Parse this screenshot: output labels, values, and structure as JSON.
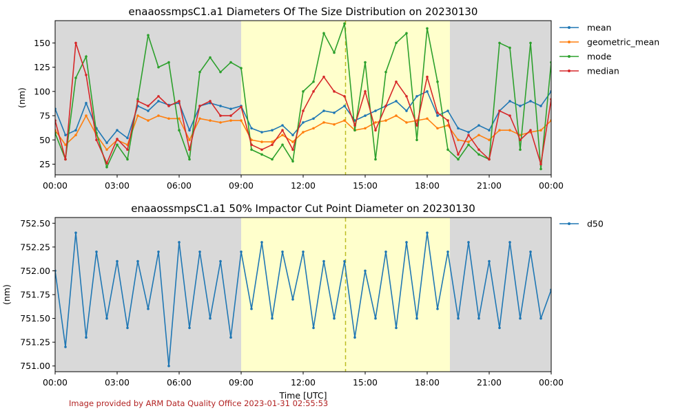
{
  "footer": "Image provided by ARM Data Quality Office 2023-01-31 02:55:53",
  "colors": {
    "night": "#d9d9d9",
    "day": "#ffffcc",
    "marker_line": "#bcbd22",
    "mean": "#1f77b4",
    "geometric_mean": "#ff7f0e",
    "mode": "#2ca02c",
    "median": "#d62728",
    "d50": "#1f77b4"
  },
  "shading": {
    "night_segments": [
      [
        0,
        9.0
      ],
      [
        19.1,
        24
      ]
    ],
    "day_segment": [
      9.0,
      19.1
    ],
    "marker_hour": 14.05
  },
  "chart_data": [
    {
      "type": "line",
      "title": "enaaossmpsC1.a1 Diameters Of The Size Distribution on 20230130",
      "ylabel": "(nm)",
      "xlabel": "",
      "xlim": [
        0,
        24
      ],
      "ylim": [
        14,
        173
      ],
      "xticks": [
        {
          "value": 0,
          "label": "00:00"
        },
        {
          "value": 3,
          "label": "03:00"
        },
        {
          "value": 6,
          "label": "06:00"
        },
        {
          "value": 9,
          "label": "09:00"
        },
        {
          "value": 12,
          "label": "12:00"
        },
        {
          "value": 15,
          "label": "15:00"
        },
        {
          "value": 18,
          "label": "18:00"
        },
        {
          "value": 21,
          "label": "21:00"
        },
        {
          "value": 24,
          "label": "00:00"
        }
      ],
      "yticks": [
        {
          "value": 25,
          "label": "25"
        },
        {
          "value": 50,
          "label": "50"
        },
        {
          "value": 75,
          "label": "75"
        },
        {
          "value": 100,
          "label": "100"
        },
        {
          "value": 125,
          "label": "125"
        },
        {
          "value": 150,
          "label": "150"
        }
      ],
      "legend_position": "outside-right",
      "x": [
        0.0,
        0.5,
        1.0,
        1.5,
        2.0,
        2.5,
        3.0,
        3.5,
        4.0,
        4.5,
        5.0,
        5.5,
        6.0,
        6.5,
        7.0,
        7.5,
        8.0,
        8.5,
        9.0,
        9.5,
        10.0,
        10.5,
        11.0,
        11.5,
        12.0,
        12.5,
        13.0,
        13.5,
        14.0,
        14.5,
        15.0,
        15.5,
        16.0,
        16.5,
        17.0,
        17.5,
        18.0,
        18.5,
        19.0,
        19.5,
        20.0,
        20.5,
        21.0,
        21.5,
        22.0,
        22.5,
        23.0,
        23.5,
        24.0
      ],
      "series": [
        {
          "name": "mean",
          "values": [
            82,
            55,
            60,
            88,
            62,
            47,
            60,
            52,
            85,
            80,
            90,
            86,
            88,
            60,
            85,
            88,
            85,
            82,
            85,
            62,
            58,
            60,
            65,
            55,
            68,
            72,
            80,
            78,
            85,
            70,
            75,
            80,
            85,
            90,
            80,
            95,
            100,
            75,
            80,
            62,
            58,
            65,
            60,
            80,
            90,
            85,
            90,
            85,
            100
          ]
        },
        {
          "name": "geometric_mean",
          "values": [
            60,
            45,
            55,
            75,
            55,
            40,
            50,
            45,
            75,
            70,
            75,
            72,
            72,
            50,
            72,
            70,
            68,
            70,
            70,
            50,
            48,
            48,
            55,
            48,
            58,
            62,
            68,
            66,
            70,
            60,
            62,
            68,
            70,
            75,
            68,
            70,
            72,
            62,
            65,
            50,
            48,
            55,
            50,
            60,
            60,
            55,
            58,
            60,
            70
          ]
        },
        {
          "name": "mode",
          "values": [
            57,
            30,
            114,
            136,
            57,
            22,
            45,
            30,
            92,
            158,
            125,
            130,
            60,
            30,
            120,
            135,
            120,
            130,
            124,
            40,
            35,
            30,
            45,
            28,
            100,
            110,
            160,
            140,
            170,
            60,
            130,
            30,
            120,
            150,
            160,
            50,
            165,
            110,
            40,
            30,
            45,
            35,
            30,
            150,
            145,
            40,
            150,
            20,
            130
          ]
        },
        {
          "name": "median",
          "values": [
            70,
            30,
            150,
            117,
            50,
            26,
            51,
            40,
            90,
            85,
            95,
            85,
            90,
            40,
            85,
            90,
            75,
            75,
            84,
            45,
            40,
            45,
            60,
            40,
            80,
            100,
            115,
            100,
            95,
            65,
            100,
            60,
            85,
            110,
            95,
            65,
            115,
            78,
            70,
            35,
            55,
            40,
            30,
            80,
            75,
            50,
            60,
            25,
            92
          ]
        }
      ]
    },
    {
      "type": "line",
      "title": "enaaossmpsC1.a1 50% Impactor Cut Point Diameter on 20230130",
      "ylabel": "(nm)",
      "xlabel": "Time [UTC]",
      "xlim": [
        0,
        24
      ],
      "ylim": [
        750.94,
        752.56
      ],
      "xticks": [
        {
          "value": 0,
          "label": "00:00"
        },
        {
          "value": 3,
          "label": "03:00"
        },
        {
          "value": 6,
          "label": "06:00"
        },
        {
          "value": 9,
          "label": "09:00"
        },
        {
          "value": 12,
          "label": "12:00"
        },
        {
          "value": 15,
          "label": "15:00"
        },
        {
          "value": 18,
          "label": "18:00"
        },
        {
          "value": 21,
          "label": "21:00"
        },
        {
          "value": 24,
          "label": "00:00"
        }
      ],
      "yticks": [
        {
          "value": 751.0,
          "label": "751.00"
        },
        {
          "value": 751.25,
          "label": "751.25"
        },
        {
          "value": 751.5,
          "label": "751.50"
        },
        {
          "value": 751.75,
          "label": "751.75"
        },
        {
          "value": 752.0,
          "label": "752.00"
        },
        {
          "value": 752.25,
          "label": "752.25"
        },
        {
          "value": 752.5,
          "label": "752.50"
        }
      ],
      "legend_position": "outside-right",
      "x": [
        0.0,
        0.5,
        1.0,
        1.5,
        2.0,
        2.5,
        3.0,
        3.5,
        4.0,
        4.5,
        5.0,
        5.5,
        6.0,
        6.5,
        7.0,
        7.5,
        8.0,
        8.5,
        9.0,
        9.5,
        10.0,
        10.5,
        11.0,
        11.5,
        12.0,
        12.5,
        13.0,
        13.5,
        14.0,
        14.5,
        15.0,
        15.5,
        16.0,
        16.5,
        17.0,
        17.5,
        18.0,
        18.5,
        19.0,
        19.5,
        20.0,
        20.5,
        21.0,
        21.5,
        22.0,
        22.5,
        23.0,
        23.5,
        24.0
      ],
      "series": [
        {
          "name": "d50",
          "values": [
            752.0,
            751.2,
            752.4,
            751.3,
            752.2,
            751.5,
            752.1,
            751.4,
            752.1,
            751.6,
            752.2,
            751.0,
            752.3,
            751.4,
            752.2,
            751.5,
            752.1,
            751.3,
            752.2,
            751.6,
            752.3,
            751.5,
            752.2,
            751.7,
            752.2,
            751.4,
            752.1,
            751.5,
            752.1,
            751.3,
            752.0,
            751.5,
            752.2,
            751.4,
            752.3,
            751.5,
            752.4,
            751.6,
            752.2,
            751.5,
            752.3,
            751.5,
            752.1,
            751.4,
            752.3,
            751.5,
            752.2,
            751.5,
            751.8
          ]
        }
      ]
    }
  ]
}
